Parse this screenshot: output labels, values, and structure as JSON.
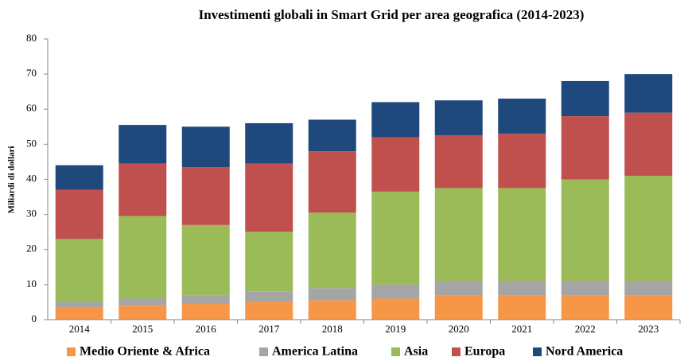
{
  "chart_data": {
    "type": "stacked_bar",
    "title": "Investimenti globali in Smart Grid per area geografica (2014-2023)",
    "y_label": "Miliardi di dollari",
    "categories": [
      "2014",
      "2015",
      "2016",
      "2017",
      "2018",
      "2019",
      "2020",
      "2021",
      "2022",
      "2023"
    ],
    "series": [
      {
        "name": "Medio Oriente & Africa",
        "color": "#f79646",
        "values": [
          3.5,
          4,
          4.5,
          5,
          5.5,
          6,
          7,
          7,
          7,
          7
        ]
      },
      {
        "name": "America Latina",
        "color": "#a5a5a5",
        "values": [
          1.5,
          2,
          2.5,
          3,
          3.5,
          4,
          4,
          4,
          4,
          4
        ]
      },
      {
        "name": "Asia",
        "color": "#9bbb59",
        "values": [
          18,
          23.5,
          20,
          17,
          21.5,
          26.5,
          26.5,
          26.5,
          29,
          30
        ]
      },
      {
        "name": "Europa",
        "color": "#c0504d",
        "values": [
          14,
          15,
          16.5,
          19.5,
          17.5,
          15.5,
          15,
          15.5,
          18,
          18
        ]
      },
      {
        "name": "Nord America",
        "color": "#1f497d",
        "values": [
          7,
          11,
          11.5,
          11.5,
          9,
          10,
          10,
          10,
          10,
          11
        ]
      }
    ],
    "ylim": [
      0,
      80
    ],
    "yticks": [
      0,
      10,
      20,
      30,
      40,
      50,
      60,
      70,
      80
    ],
    "grid": false,
    "legend": "bottom"
  }
}
